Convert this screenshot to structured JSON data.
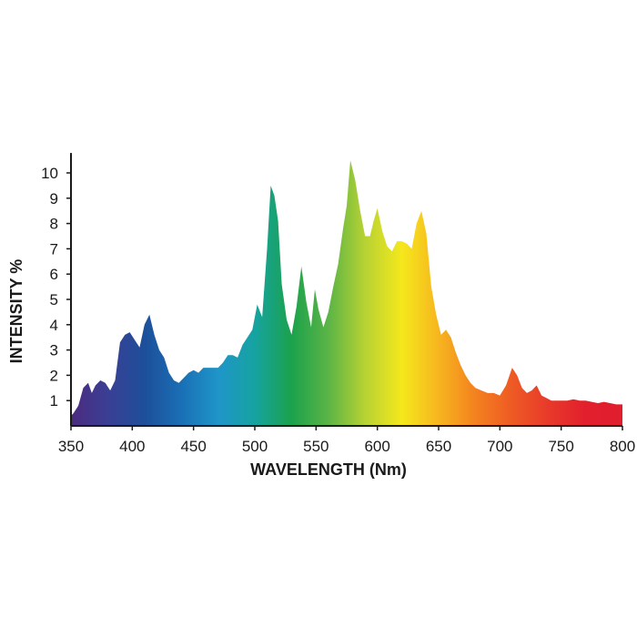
{
  "chart_data": {
    "type": "area",
    "xlabel": "WAVELENGTH (Nm)",
    "ylabel": "INTENSITY %",
    "xlim": [
      350,
      800
    ],
    "ylim": [
      0,
      10.5
    ],
    "x_ticks": [
      "350",
      "400",
      "450",
      "500",
      "550",
      "600",
      "650",
      "700",
      "750",
      "800"
    ],
    "y_ticks": [
      "1",
      "2",
      "3",
      "4",
      "5",
      "6",
      "7",
      "8",
      "9",
      "10"
    ],
    "grid": false,
    "fill": "spectral gradient (violet to red)",
    "gradient_colors": [
      "#4b2b7f",
      "#3a3f94",
      "#1d4f9a",
      "#1a6fb5",
      "#1f95c9",
      "#16a3a0",
      "#1ba24c",
      "#5bb446",
      "#b7d233",
      "#f5e81c",
      "#f7b51f",
      "#f4811f",
      "#ee5a24",
      "#e8392a",
      "#e21f2d",
      "#e01e2e"
    ],
    "series": [
      {
        "x": [
          348,
          352,
          356,
          360,
          364,
          367,
          370,
          374,
          378,
          382,
          386,
          390,
          394,
          398,
          402,
          406,
          410,
          414,
          418,
          422,
          426,
          430,
          434,
          438,
          442,
          446,
          450,
          454,
          458,
          462,
          466,
          470,
          474,
          478,
          482,
          486,
          490,
          494,
          498,
          502,
          506,
          510,
          513,
          516,
          519,
          522,
          526,
          530,
          534,
          538,
          542,
          546,
          549,
          552,
          556,
          560,
          564,
          568,
          572,
          575,
          578,
          582,
          586,
          590,
          594,
          597,
          600,
          604,
          608,
          612,
          616,
          620,
          624,
          628,
          632,
          636,
          640,
          644,
          648,
          652,
          656,
          660,
          664,
          668,
          672,
          676,
          680,
          685,
          690,
          695,
          700,
          705,
          710,
          714,
          718,
          722,
          726,
          730,
          734,
          738,
          742,
          746,
          750,
          755,
          760,
          765,
          770,
          775,
          780,
          785,
          790,
          795,
          800
        ],
        "values": [
          0.4,
          0.5,
          0.8,
          1.5,
          1.7,
          1.3,
          1.6,
          1.8,
          1.7,
          1.4,
          1.8,
          3.3,
          3.6,
          3.7,
          3.4,
          3.1,
          4.0,
          4.4,
          3.6,
          3.0,
          2.7,
          2.1,
          1.8,
          1.7,
          1.9,
          2.1,
          2.2,
          2.1,
          2.3,
          2.3,
          2.3,
          2.3,
          2.5,
          2.8,
          2.8,
          2.7,
          3.2,
          3.5,
          3.8,
          4.8,
          4.3,
          7.0,
          9.5,
          9.1,
          8.1,
          5.6,
          4.2,
          3.6,
          4.7,
          6.3,
          4.9,
          3.9,
          5.4,
          4.6,
          3.9,
          4.5,
          5.5,
          6.4,
          7.8,
          8.7,
          10.5,
          9.7,
          8.5,
          7.5,
          7.5,
          8.1,
          8.6,
          7.7,
          7.1,
          6.9,
          7.3,
          7.3,
          7.2,
          7.0,
          8.0,
          8.5,
          7.6,
          5.5,
          4.4,
          3.6,
          3.8,
          3.5,
          2.9,
          2.4,
          2.0,
          1.7,
          1.5,
          1.4,
          1.3,
          1.3,
          1.2,
          1.6,
          2.3,
          2.0,
          1.5,
          1.3,
          1.4,
          1.6,
          1.2,
          1.1,
          1.0,
          1.0,
          1.0,
          1.0,
          1.05,
          1.0,
          1.0,
          0.95,
          0.9,
          0.95,
          0.9,
          0.85,
          0.85
        ]
      }
    ]
  }
}
